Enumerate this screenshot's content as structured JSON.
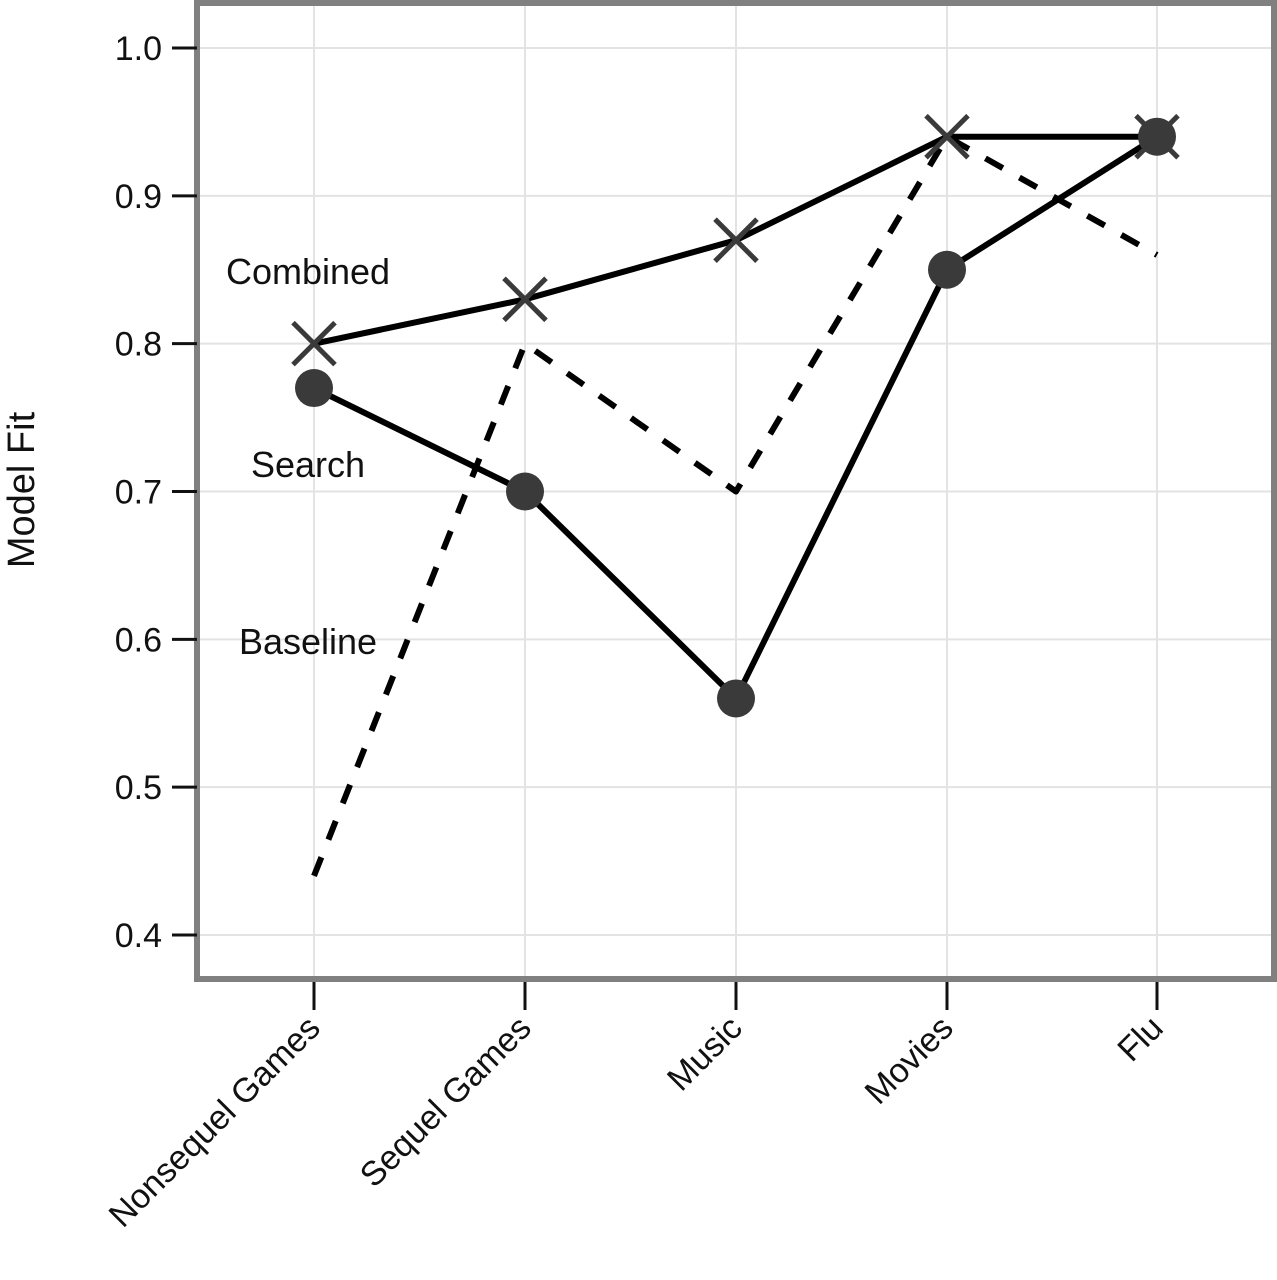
{
  "chart_data": {
    "type": "line",
    "title": "",
    "xlabel": "",
    "ylabel": "Model Fit",
    "categories": [
      "Nonsequel Games",
      "Sequel Games",
      "Music",
      "Movies",
      "Flu"
    ],
    "ylim": [
      0.37,
      1.03
    ],
    "yticks": [
      0.4,
      0.5,
      0.6,
      0.7,
      0.8,
      0.9,
      1.0
    ],
    "ytick_labels": [
      "0.4",
      "0.5",
      "0.6",
      "0.7",
      "0.8",
      "0.9",
      "1.0"
    ],
    "grid": true,
    "legend": "none",
    "series": [
      {
        "name": "Combined",
        "values": [
          0.8,
          0.83,
          0.87,
          0.94,
          0.94
        ],
        "marker": "x-icon",
        "line": "solid"
      },
      {
        "name": "Search",
        "values": [
          0.77,
          0.7,
          0.56,
          0.85,
          0.94
        ],
        "marker": "circle-icon",
        "line": "solid"
      },
      {
        "name": "Baseline",
        "values": [
          0.44,
          0.8,
          0.7,
          0.94,
          0.86
        ],
        "marker": "none",
        "line": "dashed"
      }
    ],
    "colors": {
      "line": "#000000",
      "marker": "#3a3a3a",
      "grid": "#e3e3e3",
      "frame": "#808080"
    }
  }
}
